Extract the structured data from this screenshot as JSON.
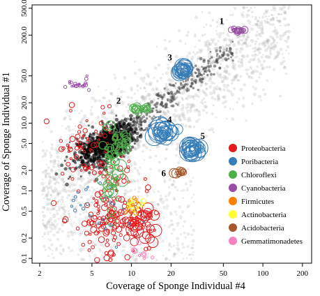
{
  "chart_data": {
    "type": "scatter",
    "title": "",
    "xlabel": "Coverage of Sponge Individual #4",
    "ylabel": "Coverage of Sponge Individual #1",
    "xscale": "log",
    "yscale": "log",
    "xlim": [
      1.75,
      235
    ],
    "ylim": [
      0.085,
      560
    ],
    "grid": false,
    "legend_position": "bottom-right",
    "x_ticks": [
      {
        "value": 2,
        "label": "2"
      },
      {
        "value": 5,
        "label": "5"
      },
      {
        "value": 10,
        "label": "10"
      },
      {
        "value": 20,
        "label": "20"
      },
      {
        "value": 50,
        "label": "50"
      },
      {
        "value": 100,
        "label": "100"
      },
      {
        "value": 200,
        "label": "200"
      }
    ],
    "y_ticks": [
      {
        "value": 0.1,
        "label": "0.1"
      },
      {
        "value": 0.2,
        "label": "0.2"
      },
      {
        "value": 0.5,
        "label": "0.5"
      },
      {
        "value": 1.0,
        "label": "1.0"
      },
      {
        "value": 2.0,
        "label": "2.0"
      },
      {
        "value": 5.0,
        "label": "5.0"
      },
      {
        "value": 10.0,
        "label": "10.0"
      },
      {
        "value": 20.0,
        "label": "20.0"
      },
      {
        "value": 50.0,
        "label": "50.0"
      },
      {
        "value": 200.0,
        "label": "200.0"
      },
      {
        "value": 500.0,
        "label": "500.0"
      }
    ],
    "series": [
      {
        "name": "Proteobacteria",
        "color": "#e41a1c"
      },
      {
        "name": "Poribacteria",
        "color": "#377eb8"
      },
      {
        "name": "Chloroflexi",
        "color": "#4daf4a"
      },
      {
        "name": "Cyanobacteria",
        "color": "#984ea3"
      },
      {
        "name": "Firmicutes",
        "color": "#ff7f00"
      },
      {
        "name": "Actinobacteria",
        "color": "#ffff33"
      },
      {
        "name": "Acidobacteria",
        "color": "#a65628"
      },
      {
        "name": "Gemmatimonadetes",
        "color": "#f781bf"
      }
    ],
    "clusters": [
      {
        "label": "1",
        "series": "Cyanobacteria",
        "x": 62,
        "y": 240
      },
      {
        "label": "2",
        "series": "Chloroflexi",
        "x": 11.5,
        "y": 16
      },
      {
        "label": "3",
        "series": "Poribacteria",
        "x": 25,
        "y": 58
      },
      {
        "label": "4",
        "series": "Poribacteria",
        "x": 17,
        "y": 7
      },
      {
        "label": "5",
        "series": "Poribacteria",
        "x": 29,
        "y": 4
      },
      {
        "label": "6",
        "series": "Acidobacteria",
        "x": 23,
        "y": 1.8
      }
    ],
    "background_series": "all contigs (grey / black density)"
  }
}
